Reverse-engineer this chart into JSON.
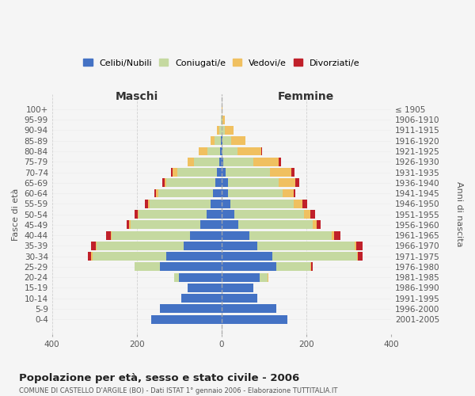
{
  "age_groups": [
    "0-4",
    "5-9",
    "10-14",
    "15-19",
    "20-24",
    "25-29",
    "30-34",
    "35-39",
    "40-44",
    "45-49",
    "50-54",
    "55-59",
    "60-64",
    "65-69",
    "70-74",
    "75-79",
    "80-84",
    "85-89",
    "90-94",
    "95-99",
    "100+"
  ],
  "birth_years": [
    "2001-2005",
    "1996-2000",
    "1991-1995",
    "1986-1990",
    "1981-1985",
    "1976-1980",
    "1971-1975",
    "1966-1970",
    "1961-1965",
    "1956-1960",
    "1951-1955",
    "1946-1950",
    "1941-1945",
    "1936-1940",
    "1931-1935",
    "1926-1930",
    "1921-1925",
    "1916-1920",
    "1911-1915",
    "1906-1910",
    "≤ 1905"
  ],
  "colors": {
    "celibi": "#4472c4",
    "coniugati": "#c5d9a0",
    "vedovi": "#f0c060",
    "divorziati": "#c0202a"
  },
  "maschi": {
    "celibi": [
      165,
      145,
      95,
      80,
      100,
      145,
      130,
      90,
      75,
      50,
      35,
      25,
      20,
      15,
      10,
      5,
      3,
      2,
      0,
      0,
      0
    ],
    "coniugati": [
      0,
      0,
      0,
      0,
      12,
      60,
      175,
      205,
      185,
      165,
      160,
      145,
      130,
      115,
      95,
      60,
      30,
      15,
      5,
      2,
      0
    ],
    "vedovi": [
      0,
      0,
      0,
      0,
      0,
      0,
      2,
      2,
      2,
      3,
      3,
      3,
      5,
      5,
      10,
      15,
      20,
      8,
      5,
      0,
      0
    ],
    "divorziati": [
      0,
      0,
      0,
      0,
      0,
      0,
      8,
      10,
      10,
      5,
      8,
      8,
      3,
      5,
      5,
      0,
      0,
      0,
      0,
      0,
      0
    ]
  },
  "femmine": {
    "celibi": [
      155,
      130,
      85,
      75,
      90,
      130,
      120,
      85,
      65,
      40,
      30,
      20,
      15,
      15,
      10,
      5,
      3,
      2,
      0,
      0,
      0
    ],
    "coniugati": [
      0,
      0,
      0,
      0,
      18,
      80,
      200,
      230,
      195,
      175,
      165,
      150,
      130,
      120,
      105,
      70,
      35,
      20,
      8,
      2,
      0
    ],
    "vedovi": [
      0,
      0,
      0,
      0,
      2,
      2,
      2,
      3,
      5,
      10,
      15,
      20,
      25,
      40,
      50,
      60,
      55,
      35,
      20,
      5,
      2
    ],
    "divorziati": [
      0,
      0,
      0,
      0,
      0,
      3,
      10,
      15,
      15,
      8,
      10,
      12,
      5,
      8,
      8,
      5,
      2,
      0,
      0,
      0,
      0
    ]
  },
  "title": "Popolazione per età, sesso e stato civile - 2006",
  "subtitle": "COMUNE DI CASTELLO D'ARGILE (BO) - Dati ISTAT 1° gennaio 2006 - Elaborazione TUTTITALIA.IT",
  "xlabel_left": "Maschi",
  "xlabel_right": "Femmine",
  "ylabel_left": "Fasce di età",
  "ylabel_right": "Anni di nascita",
  "xlim": 400,
  "legend_labels": [
    "Celibi/Nubili",
    "Coniugati/e",
    "Vedovi/e",
    "Divorziati/e"
  ],
  "background_color": "#f5f5f5",
  "grid_color": "#cccccc"
}
